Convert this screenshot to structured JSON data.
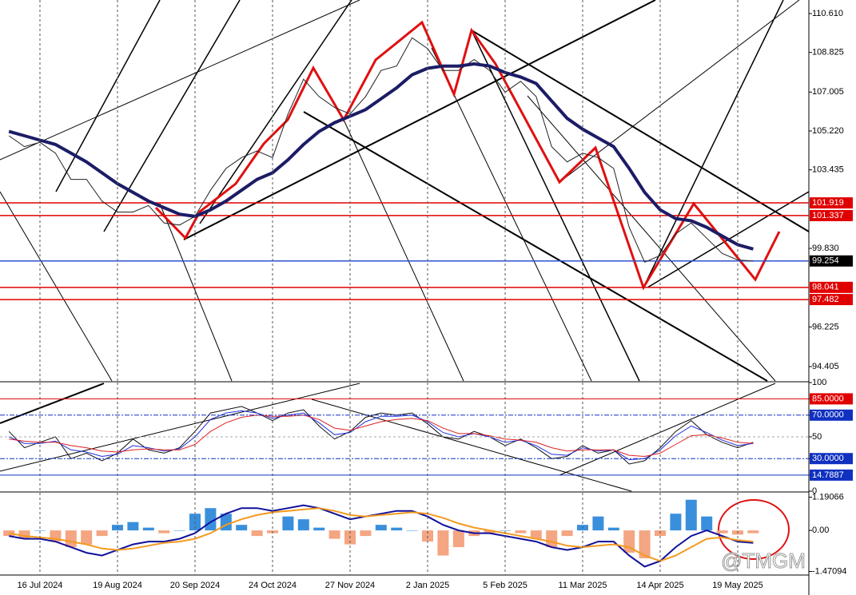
{
  "chart_data": [
    {
      "type": "line",
      "x": [
        null,
        null,
        "16 Jul 2024",
        null,
        null,
        null,
        null,
        "19 Aug 2024",
        null,
        null,
        null,
        null,
        "20 Sep 2024",
        null,
        null,
        null,
        null,
        "24 Oct 2024",
        null,
        null,
        null,
        null,
        "27 Nov 2024",
        null,
        null,
        null,
        null,
        "2 Jan 2025",
        null,
        null,
        null,
        null,
        "5 Feb 2025",
        null,
        null,
        null,
        null,
        "11 Mar 2025",
        null,
        null,
        null,
        null,
        "14 Apr 2025",
        null,
        null,
        null,
        null,
        "19 May 2025",
        null
      ],
      "series": [
        {
          "color": "#222222",
          "values": [
            105.0,
            104.5,
            104.7,
            104.2,
            103.0,
            103.0,
            102.0,
            101.5,
            101.5,
            101.8,
            101.0,
            100.9,
            101.3,
            102.5,
            103.5,
            104.0,
            104.3,
            104.0,
            106.0,
            107.6,
            106.8,
            106.3,
            106.0,
            106.8,
            108.0,
            108.2,
            109.5,
            109.0,
            108.0,
            108.0,
            108.5,
            108.0,
            107.0,
            107.5,
            106.8,
            104.5,
            103.8,
            104.2,
            104.0,
            103.5,
            100.8,
            99.2,
            99.5,
            100.5,
            101.0,
            100.3,
            99.6,
            99.3,
            99.25
          ]
        },
        {
          "color": "#1c1c66",
          "values": [
            105.2,
            105.0,
            104.8,
            104.6,
            104.2,
            103.8,
            103.3,
            102.8,
            102.4,
            102.0,
            101.7,
            101.4,
            101.3,
            101.6,
            102.0,
            102.5,
            103.0,
            103.3,
            103.9,
            104.6,
            105.2,
            105.6,
            105.9,
            106.2,
            106.7,
            107.2,
            107.8,
            108.1,
            108.2,
            108.2,
            108.3,
            108.2,
            107.9,
            107.7,
            107.4,
            106.6,
            105.8,
            105.3,
            104.9,
            104.5,
            103.5,
            102.4,
            101.6,
            101.2,
            101.1,
            100.8,
            100.4,
            100.0,
            99.8
          ]
        }
      ],
      "ylim": [
        93.745,
        111.233
      ],
      "yticks": [
        {
          "value": 110.61,
          "label": "110.610"
        },
        108.825,
        107.005,
        {
          "value": 105.22,
          "label": "105.220"
        },
        103.435,
        {
          "value": 99.83,
          "label": "99.830"
        },
        96.225,
        94.405
      ],
      "levels": [
        {
          "value": 101.919,
          "color": "#e00000"
        },
        {
          "value": 101.337,
          "color": "#e00000"
        },
        {
          "value": 99.254,
          "color": "#3050d0",
          "label_color": "#000000"
        },
        {
          "value": 98.041,
          "color": "#e00000"
        },
        {
          "value": 97.482,
          "color": "#e00000"
        }
      ],
      "grid": true,
      "watermark": "@TMGM"
    },
    {
      "type": "line",
      "series": [
        {
          "color": "#111111",
          "values": [
            55,
            40,
            45,
            50,
            30,
            35,
            28,
            35,
            48,
            38,
            35,
            40,
            55,
            72,
            75,
            78,
            72,
            65,
            72,
            75,
            60,
            48,
            55,
            68,
            72,
            70,
            72,
            62,
            50,
            48,
            55,
            50,
            42,
            48,
            40,
            30,
            32,
            42,
            35,
            38,
            25,
            28,
            40,
            55,
            65,
            52,
            45,
            40,
            45
          ]
        },
        {
          "color": "#2030e0",
          "values": [
            50,
            44,
            44,
            46,
            38,
            36,
            32,
            34,
            42,
            40,
            37,
            39,
            50,
            66,
            72,
            74,
            72,
            67,
            70,
            72,
            63,
            52,
            54,
            64,
            69,
            69,
            70,
            64,
            54,
            50,
            53,
            50,
            45,
            47,
            42,
            34,
            33,
            40,
            37,
            38,
            29,
            30,
            38,
            51,
            60,
            54,
            47,
            42,
            44
          ]
        },
        {
          "color": "#e02020",
          "values": [
            48,
            46,
            45,
            45,
            42,
            40,
            37,
            36,
            38,
            39,
            38,
            38,
            43,
            55,
            63,
            68,
            70,
            69,
            69,
            70,
            66,
            58,
            56,
            60,
            64,
            66,
            67,
            65,
            58,
            53,
            53,
            51,
            48,
            47,
            45,
            40,
            37,
            38,
            38,
            38,
            33,
            32,
            35,
            43,
            51,
            52,
            49,
            45,
            44
          ]
        }
      ],
      "ylim": [
        0,
        100
      ],
      "yticks": [
        100,
        {
          "value": 85,
          "label": "85.0000"
        },
        {
          "value": 70,
          "label": "70.0000"
        },
        50,
        {
          "value": 30,
          "label": "30.0000"
        },
        14.7887,
        0
      ],
      "tick_colors": [
        null,
        "#e00000",
        "#1030c0",
        "#aaaaaa",
        "#1030c0",
        "#1030c0",
        null
      ],
      "tick_label_bg": [
        null,
        "#e00000",
        "#1030c0",
        null,
        "#1030c0",
        "#1030c0",
        null
      ]
    },
    {
      "type": "bar",
      "values": [
        -0.2,
        -0.3,
        0.0,
        -0.4,
        -0.6,
        -0.5,
        -0.2,
        0.2,
        0.3,
        0.1,
        -0.1,
        0.0,
        0.6,
        0.8,
        0.6,
        0.2,
        -0.2,
        -0.1,
        0.5,
        0.4,
        0.1,
        -0.3,
        -0.5,
        -0.2,
        0.2,
        0.1,
        0.0,
        -0.4,
        -0.9,
        -0.6,
        -0.2,
        -0.1,
        0.0,
        -0.1,
        -0.3,
        -0.6,
        -0.2,
        0.2,
        0.5,
        0.1,
        -0.8,
        -1.0,
        -0.2,
        0.6,
        1.1,
        0.5,
        -0.1,
        -0.15,
        -0.1
      ],
      "color": "#3a8fdc",
      "negative_color": "#f4a582",
      "series": [
        {
          "color": "#10109a",
          "values": [
            -0.2,
            -0.3,
            -0.3,
            -0.4,
            -0.6,
            -0.8,
            -0.9,
            -0.7,
            -0.5,
            -0.4,
            -0.4,
            -0.3,
            -0.1,
            0.3,
            0.6,
            0.8,
            0.8,
            0.7,
            0.8,
            0.9,
            0.8,
            0.6,
            0.4,
            0.5,
            0.6,
            0.7,
            0.7,
            0.5,
            0.2,
            0.0,
            -0.1,
            -0.1,
            -0.2,
            -0.3,
            -0.4,
            -0.6,
            -0.7,
            -0.6,
            -0.4,
            -0.4,
            -0.9,
            -1.3,
            -1.1,
            -0.6,
            -0.2,
            0.0,
            -0.2,
            -0.4,
            -0.45
          ]
        },
        {
          "color": "#f39a1e",
          "values": [
            -0.1,
            -0.2,
            -0.25,
            -0.3,
            -0.4,
            -0.5,
            -0.65,
            -0.7,
            -0.65,
            -0.55,
            -0.45,
            -0.4,
            -0.3,
            -0.1,
            0.2,
            0.4,
            0.55,
            0.65,
            0.7,
            0.75,
            0.8,
            0.7,
            0.55,
            0.5,
            0.55,
            0.6,
            0.65,
            0.6,
            0.45,
            0.25,
            0.1,
            0.0,
            -0.1,
            -0.2,
            -0.3,
            -0.4,
            -0.55,
            -0.6,
            -0.55,
            -0.5,
            -0.6,
            -0.9,
            -1.1,
            -0.9,
            -0.6,
            -0.3,
            -0.25,
            -0.35,
            -0.4
          ]
        }
      ],
      "ylim": [
        -1.6,
        1.35
      ],
      "yticks": [
        1.19066,
        {
          "value": 0,
          "label": "0.00"
        },
        -1.47094
      ]
    }
  ]
}
